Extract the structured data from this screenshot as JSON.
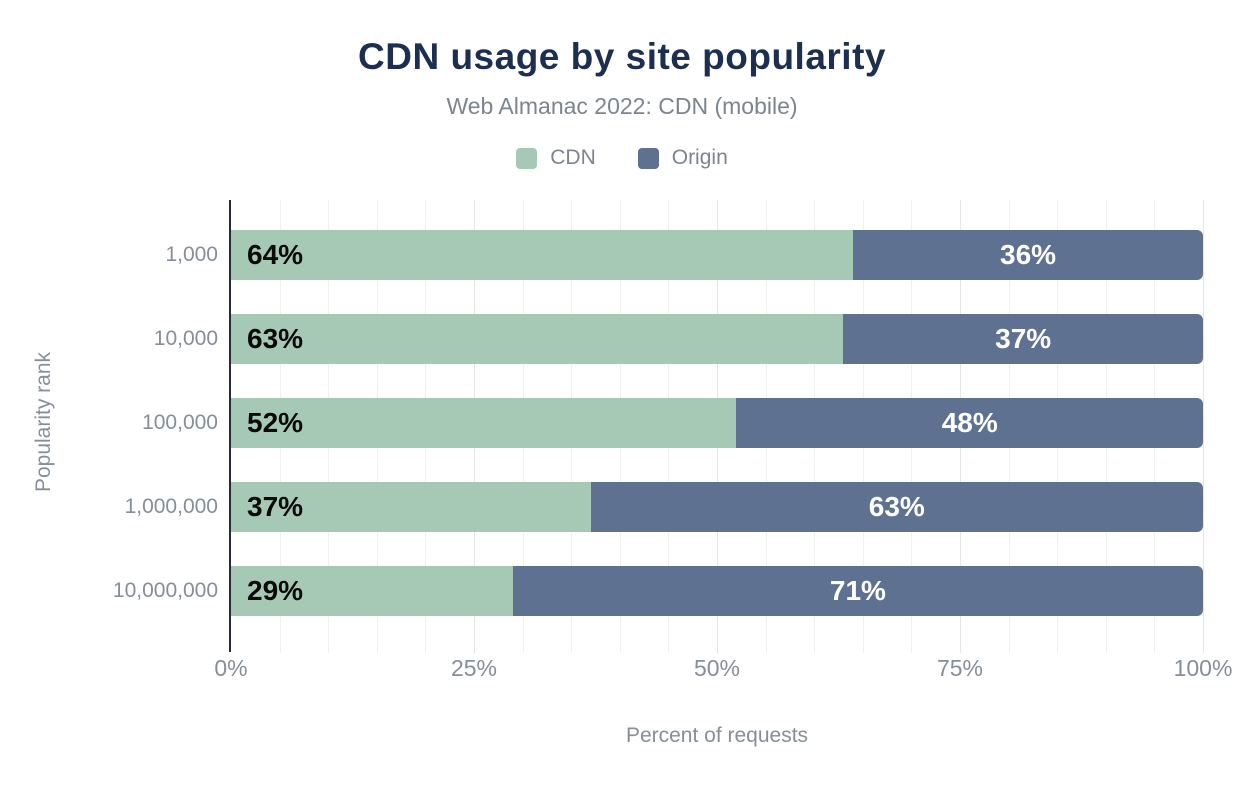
{
  "chart_data": {
    "type": "bar",
    "orientation": "horizontal",
    "stacked": true,
    "title": "CDN usage by site popularity",
    "subtitle": "Web Almanac 2022: CDN (mobile)",
    "xlabel": "Percent of requests",
    "ylabel": "Popularity rank",
    "categories": [
      "1,000",
      "10,000",
      "100,000",
      "1,000,000",
      "10,000,000"
    ],
    "series": [
      {
        "name": "CDN",
        "values": [
          64,
          63,
          52,
          37,
          29
        ],
        "color": "#a6c9b6",
        "label_color": "#0a0a0a"
      },
      {
        "name": "Origin",
        "values": [
          36,
          37,
          48,
          63,
          71
        ],
        "color": "#5e7190",
        "label_color": "#ffffff"
      }
    ],
    "value_suffix": "%",
    "xlim": [
      0,
      100
    ],
    "x_ticks": [
      {
        "value": 0,
        "label": "0%"
      },
      {
        "value": 25,
        "label": "25%"
      },
      {
        "value": 50,
        "label": "50%"
      },
      {
        "value": 75,
        "label": "75%"
      },
      {
        "value": 100,
        "label": "100%"
      }
    ],
    "minor_grid_step": 5,
    "grid": true,
    "legend_position": "top"
  },
  "colors": {
    "title": "#1c2f51",
    "subtitle": "#7c858d",
    "axis_text": "#868e97",
    "axis_line": "#272b35",
    "grid_minor": "#eef0f1",
    "grid_major": "#e3e5e7",
    "background": "#ffffff"
  }
}
